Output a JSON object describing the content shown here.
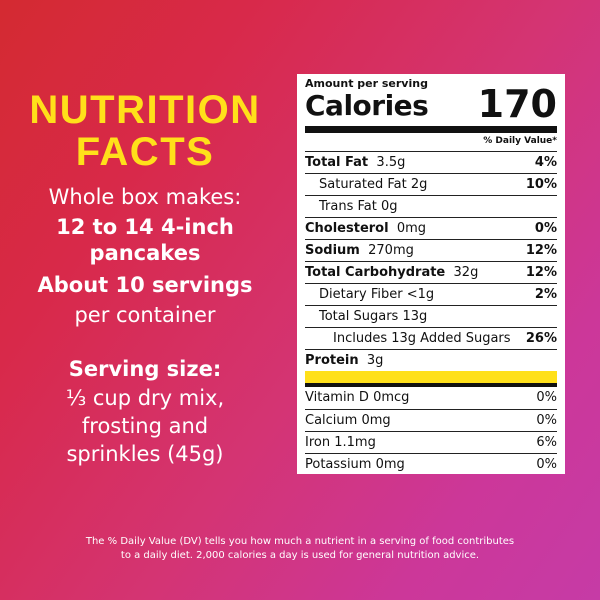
{
  "left": {
    "title_line1": "NUTRITION",
    "title_line2": "FACTS",
    "whole_box_label": "Whole box makes:",
    "whole_box_value": "12 to 14 4-inch pancakes",
    "servings_bold": "About 10 servings",
    "servings_rest": "per container",
    "serving_size_label": "Serving size:",
    "serving_size_line1": "⅓ cup dry mix,",
    "serving_size_line2": "frosting and",
    "serving_size_line3": "sprinkles (45g)"
  },
  "panel": {
    "amount_per_serving": "Amount per serving",
    "calories_label": "Calories",
    "calories_value": "170",
    "daily_value_header": "% Daily Value*",
    "nutrients": [
      {
        "name": "Total Fat",
        "amount": "3.5g",
        "dv": "4%"
      },
      {
        "name": "Saturated Fat",
        "amount": "2g",
        "dv": "10%"
      },
      {
        "name": "Trans Fat",
        "amount": "0g",
        "dv": ""
      },
      {
        "name": "Cholesterol",
        "amount": "0mg",
        "dv": "0%"
      },
      {
        "name": "Sodium",
        "amount": "270mg",
        "dv": "12%"
      },
      {
        "name": "Total Carbohydrate",
        "amount": "32g",
        "dv": "12%"
      },
      {
        "name": "Dietary Fiber",
        "amount": "<1g",
        "dv": "2%"
      },
      {
        "name": "Total Sugars",
        "amount": "13g",
        "dv": ""
      },
      {
        "name": "Includes 13g Added Sugars",
        "amount": "",
        "dv": "26%"
      },
      {
        "name": "Protein",
        "amount": "3g",
        "dv": ""
      }
    ],
    "vitamins": [
      {
        "name": "Vitamin D",
        "amount": "0mcg",
        "dv": "0%"
      },
      {
        "name": "Calcium",
        "amount": "0mg",
        "dv": "0%"
      },
      {
        "name": "Iron",
        "amount": "1.1mg",
        "dv": "6%"
      },
      {
        "name": "Potassium",
        "amount": "0mg",
        "dv": "0%"
      }
    ]
  },
  "footnote": {
    "line1": "The % Daily Value (DV) tells you how much a nutrient in a serving of food contributes",
    "line2": "to a daily diet. 2,000 calories a day is used for general nutrition advice."
  },
  "colors": {
    "title_yellow": "#ffe01a",
    "background_red": "#d42a31",
    "background_magenta": "#c63ba6"
  }
}
